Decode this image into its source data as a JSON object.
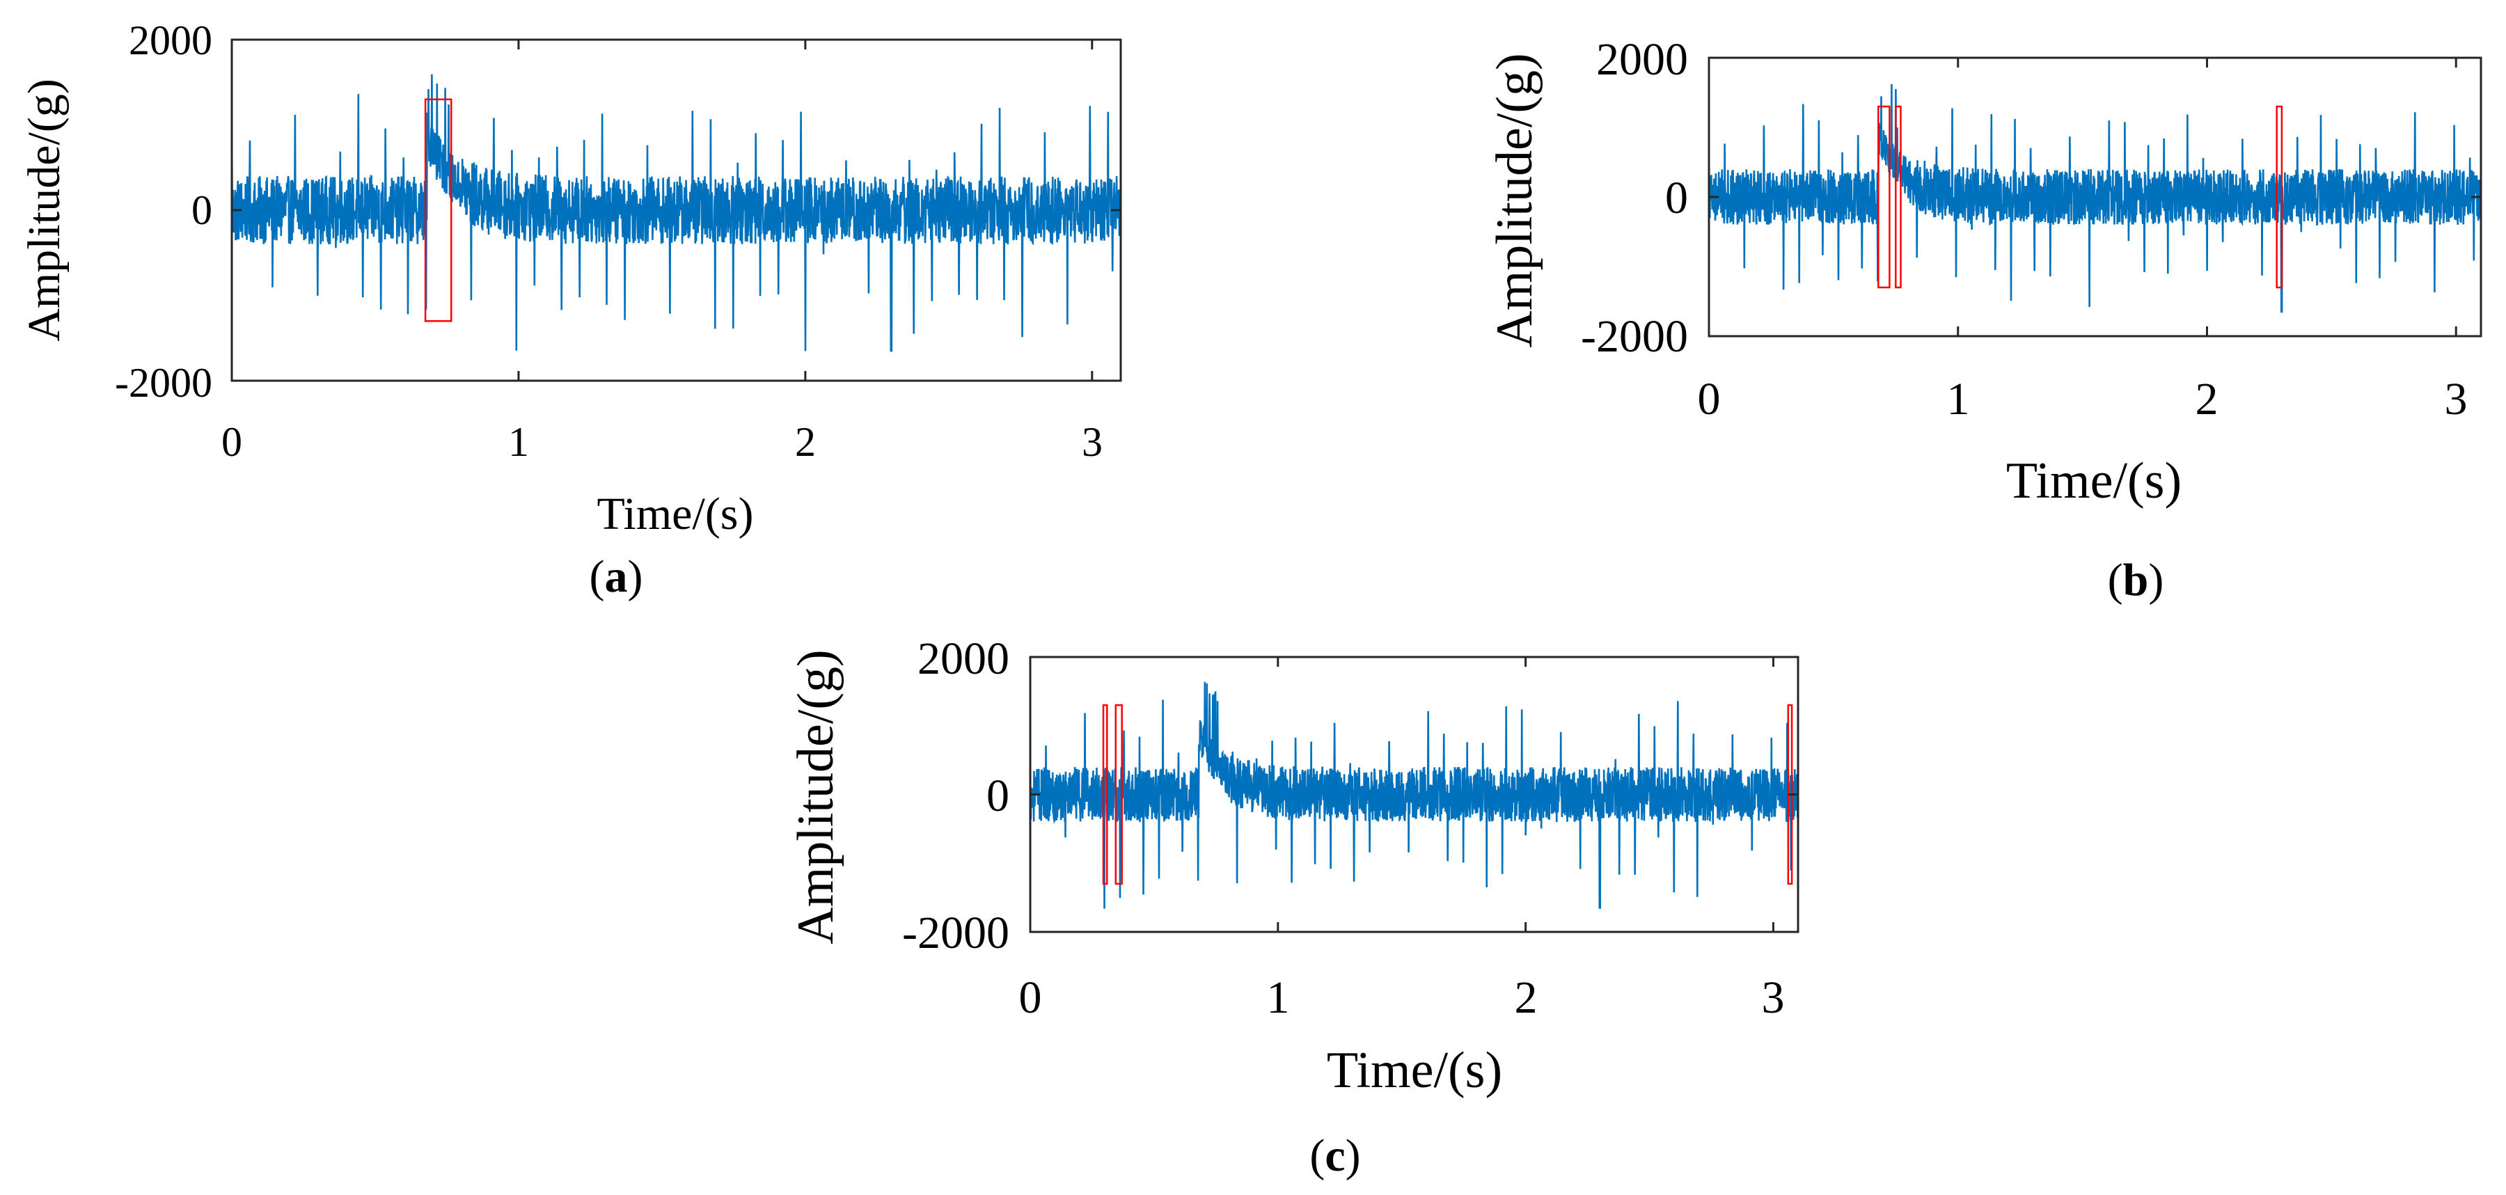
{
  "chart_data": [
    {
      "type": "line",
      "panel_label": "a",
      "xlabel": "Time/(s)",
      "ylabel": "Amplitude/(g)",
      "xlim": [
        0,
        3.1
      ],
      "ylim": [
        -2000,
        2000
      ],
      "xticks": [
        0,
        1,
        2,
        3
      ],
      "yticks": [
        -2000,
        0,
        2000
      ],
      "xtick_labels": [
        "0",
        "1",
        "2",
        "3"
      ],
      "ytick_labels": [
        "-2000",
        "0",
        "2000"
      ],
      "grid": false,
      "series": [
        {
          "color": "#0072BD",
          "description_values": {
            "baseline_before_event": 0,
            "event_time": 0.68,
            "peak_after_event": 1650,
            "offset_after_event": 900,
            "decay_until": 1.0,
            "impulse_period": 0.0315,
            "impulse_peak_max": 1000,
            "impulse_trough_min": -1300,
            "noise_band": 400
          }
        }
      ],
      "highlight_boxes": [
        {
          "x0": 0.675,
          "x1": 0.765,
          "y0": -1300,
          "y1": 1300,
          "color": "#FF0000"
        }
      ]
    },
    {
      "type": "line",
      "panel_label": "b",
      "xlabel": "Time/(s)",
      "ylabel": "Amplitude/(g)",
      "xlim": [
        0,
        3.1
      ],
      "ylim": [
        -2000,
        2000
      ],
      "xticks": [
        0,
        1,
        2,
        3
      ],
      "yticks": [
        -2000,
        0,
        2000
      ],
      "xtick_labels": [
        "0",
        "1",
        "2",
        "3"
      ],
      "ytick_labels": [
        "-2000",
        "0",
        "2000"
      ],
      "grid": false,
      "series": [
        {
          "color": "#0072BD",
          "description_values": {
            "baseline_before_event": 0,
            "event_time": 0.68,
            "peak_after_event": 1650,
            "offset_after_event": 900,
            "decay_until": 1.0,
            "impulse_period": 0.0315,
            "impulse_peak_max": 1000,
            "impulse_trough_min": -1300,
            "noise_band": 400
          }
        }
      ],
      "highlight_boxes": [
        {
          "x0": 0.68,
          "x1": 0.725,
          "y0": -1300,
          "y1": 1300,
          "color": "#FF0000"
        },
        {
          "x0": 0.75,
          "x1": 0.77,
          "y0": -1300,
          "y1": 1300,
          "color": "#FF0000"
        },
        {
          "x0": 2.28,
          "x1": 2.3,
          "y0": -1300,
          "y1": 1300,
          "color": "#FF0000"
        }
      ]
    },
    {
      "type": "line",
      "panel_label": "c",
      "xlabel": "Time/(s)",
      "ylabel": "Amplitude/(g)",
      "xlim": [
        0,
        3.1
      ],
      "ylim": [
        -2000,
        2000
      ],
      "xticks": [
        0,
        1,
        2,
        3
      ],
      "yticks": [
        -2000,
        0,
        2000
      ],
      "xtick_labels": [
        "0",
        "1",
        "2",
        "3"
      ],
      "ytick_labels": [
        "-2000",
        "0",
        "2000"
      ],
      "grid": false,
      "series": [
        {
          "color": "#0072BD",
          "description_values": {
            "baseline_before_event": 0,
            "event_time": 0.68,
            "peak_after_event": 1650,
            "offset_after_event": 900,
            "decay_until": 1.0,
            "impulse_period": 0.0315,
            "impulse_peak_max": 1000,
            "impulse_trough_min": -1300,
            "noise_band": 400
          }
        }
      ],
      "highlight_boxes": [
        {
          "x0": 0.295,
          "x1": 0.31,
          "y0": -1300,
          "y1": 1300,
          "color": "#FF0000"
        },
        {
          "x0": 0.345,
          "x1": 0.37,
          "y0": -1300,
          "y1": 1300,
          "color": "#FF0000"
        },
        {
          "x0": 3.06,
          "x1": 3.075,
          "y0": -1300,
          "y1": 1300,
          "color": "#FF0000"
        }
      ]
    }
  ]
}
